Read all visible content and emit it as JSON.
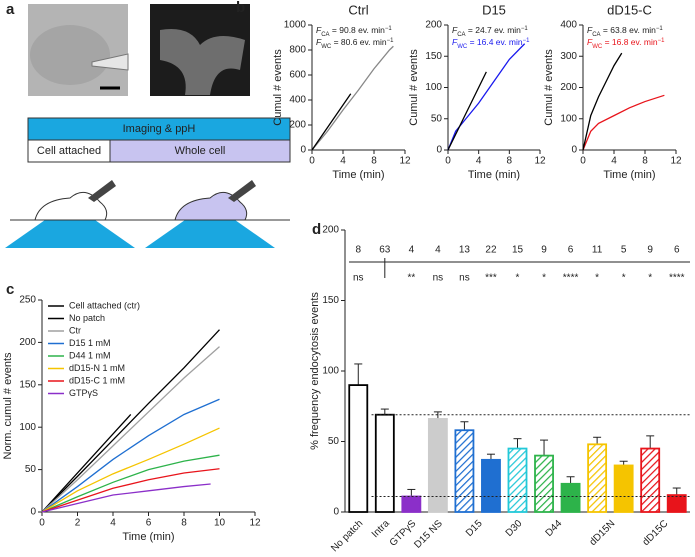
{
  "panel_labels": [
    "a",
    "b",
    "c",
    "d"
  ],
  "diagram": {
    "top_bar": "Imaging & ppH",
    "left": "Cell attached",
    "right": "Whole cell"
  },
  "chart_data": [
    {
      "type": "line",
      "title": "Ctrl",
      "title_color": "#888888",
      "xlabel": "Time (min)",
      "ylabel": "Cumul # events",
      "xlim": [
        0,
        12
      ],
      "xticks": [
        0,
        4,
        8,
        12
      ],
      "ylim": [
        0,
        1000
      ],
      "yticks": [
        0,
        200,
        400,
        600,
        800,
        1000
      ],
      "annotations": [
        {
          "symbol": "F",
          "subscript": "CA",
          "text": " = 90.8 ev. min",
          "superscript": "−1",
          "color": "#222222"
        },
        {
          "symbol": "F",
          "subscript": "WC",
          "text": " = 80.6 ev. min",
          "superscript": "−1",
          "color": "#222222"
        }
      ],
      "series": [
        {
          "color": "#888888",
          "x": [
            0,
            2,
            4,
            6,
            8,
            10,
            10.5
          ],
          "values": [
            0,
            150,
            320,
            480,
            650,
            800,
            830
          ]
        },
        {
          "color": "#000000",
          "x": [
            0,
            1,
            2,
            3,
            4,
            5
          ],
          "values": [
            0,
            90,
            180,
            270,
            360,
            450
          ]
        }
      ]
    },
    {
      "type": "line",
      "title": "D15",
      "title_color": "#1a1aee",
      "xlabel": "Time (min)",
      "ylabel": "Cumul # events",
      "xlim": [
        0,
        12
      ],
      "xticks": [
        0,
        4,
        8,
        12
      ],
      "ylim": [
        0,
        200
      ],
      "yticks": [
        0,
        50,
        100,
        150,
        200
      ],
      "annotations": [
        {
          "symbol": "F",
          "subscript": "CA",
          "text": " = 24.7 ev. min",
          "superscript": "−1",
          "color": "#222222"
        },
        {
          "symbol": "F",
          "subscript": "WC",
          "text": " = 16.4 ev. min",
          "superscript": "−1",
          "color": "#1a1aee"
        }
      ],
      "series": [
        {
          "color": "#1a1aee",
          "x": [
            0,
            1,
            2,
            4,
            6,
            8,
            10
          ],
          "values": [
            0,
            30,
            45,
            75,
            110,
            145,
            170
          ]
        },
        {
          "color": "#000000",
          "x": [
            0,
            1,
            2,
            3,
            4,
            5
          ],
          "values": [
            0,
            25,
            50,
            75,
            100,
            125
          ]
        }
      ]
    },
    {
      "type": "line",
      "title": "dD15-C",
      "title_color": "#e8141b",
      "xlabel": "Time (min)",
      "ylabel": "Cumul # events",
      "xlim": [
        0,
        12
      ],
      "xticks": [
        0,
        4,
        8,
        12
      ],
      "ylim": [
        0,
        400
      ],
      "yticks": [
        0,
        100,
        200,
        300,
        400
      ],
      "annotations": [
        {
          "symbol": "F",
          "subscript": "CA",
          "text": " = 63.8 ev. min",
          "superscript": "−1",
          "color": "#222222"
        },
        {
          "symbol": "F",
          "subscript": "WC",
          "text": " = 16.8 ev. min",
          "superscript": "−1",
          "color": "#e8141b"
        }
      ],
      "series": [
        {
          "color": "#e8141b",
          "x": [
            0,
            1,
            2,
            4,
            6,
            8,
            10.5
          ],
          "values": [
            0,
            60,
            85,
            110,
            135,
            155,
            175
          ]
        },
        {
          "color": "#000000",
          "x": [
            0,
            1,
            2,
            3,
            4,
            5
          ],
          "values": [
            0,
            110,
            170,
            220,
            270,
            310
          ]
        }
      ]
    },
    {
      "type": "line",
      "xlabel": "Time (min)",
      "ylabel": "Norm. cumul # events",
      "xlim": [
        0,
        12
      ],
      "xticks": [
        0,
        2,
        4,
        6,
        8,
        10,
        12
      ],
      "ylim": [
        0,
        250
      ],
      "yticks": [
        0,
        50,
        100,
        150,
        200,
        250
      ],
      "legend": "upper left",
      "series": [
        {
          "name": "Cell attached (ctr)",
          "color": "#000000",
          "x": [
            0,
            1,
            2,
            3,
            4,
            5
          ],
          "values": [
            0,
            23,
            46,
            69,
            92,
            115
          ]
        },
        {
          "name": "No patch",
          "color": "#000000",
          "x": [
            0,
            2,
            4,
            6,
            8,
            10
          ],
          "values": [
            0,
            42,
            85,
            128,
            170,
            215
          ]
        },
        {
          "name": "Ctr",
          "color": "#a0a0a0",
          "x": [
            0,
            2,
            4,
            6,
            8,
            10
          ],
          "values": [
            0,
            38,
            78,
            118,
            158,
            195
          ]
        },
        {
          "name": "D15 1 mM",
          "color": "#1f6fd1",
          "x": [
            0,
            2,
            4,
            6,
            8,
            10
          ],
          "values": [
            0,
            30,
            62,
            90,
            115,
            133
          ]
        },
        {
          "name": "D44 1 mM",
          "color": "#2db34a",
          "x": [
            0,
            2,
            4,
            6,
            8,
            10
          ],
          "values": [
            0,
            18,
            35,
            50,
            60,
            67
          ]
        },
        {
          "name": "dD15-N 1 mM",
          "color": "#f5c400",
          "x": [
            0,
            2,
            4,
            6,
            8,
            10
          ],
          "values": [
            0,
            25,
            45,
            62,
            80,
            99
          ]
        },
        {
          "name": "dD15-C 1 mM",
          "color": "#e8141b",
          "x": [
            0,
            2,
            4,
            6,
            8,
            10
          ],
          "values": [
            0,
            14,
            28,
            38,
            46,
            51
          ]
        },
        {
          "name": "GTPγS",
          "color": "#8b2fc9",
          "x": [
            0,
            2,
            4,
            6,
            8,
            9.5
          ],
          "values": [
            0,
            10,
            20,
            25,
            30,
            33
          ]
        }
      ]
    },
    {
      "type": "bar",
      "ylabel": "% frequency endocytosis events",
      "ylim": [
        0,
        200
      ],
      "yticks": [
        0,
        50,
        100,
        150,
        200
      ],
      "categories": [
        "No patch",
        "Intra",
        "GTPγS",
        "D15 NS",
        "D15",
        null,
        "D30",
        "D44",
        null,
        "dD15N",
        null,
        "dD15C",
        null
      ],
      "values": [
        90,
        69,
        11,
        66,
        58,
        37,
        45,
        40,
        20,
        48,
        33,
        45,
        12
      ],
      "errors": [
        15,
        4,
        5,
        5,
        6,
        4,
        7,
        11,
        5,
        5,
        3,
        9,
        5
      ],
      "colors": [
        "#ffffff",
        "#ffffff",
        "#8b2fc9",
        "#cccccc",
        "#1f6fd1",
        "#1f6fd1",
        "#22c8d8",
        "#2db34a",
        "#2db34a",
        "#f5c400",
        "#f5c400",
        "#e8141b",
        "#e8141b"
      ],
      "hatched": [
        false,
        false,
        false,
        false,
        true,
        false,
        true,
        true,
        false,
        true,
        false,
        true,
        false
      ],
      "n": [
        8,
        63,
        4,
        4,
        13,
        22,
        15,
        9,
        6,
        11,
        5,
        9,
        6
      ],
      "significance": [
        "ns",
        null,
        "**",
        "ns",
        "ns",
        "***",
        "*",
        "*",
        "****",
        "*",
        "*",
        "*",
        "****"
      ],
      "reference_lines": [
        69,
        11
      ]
    }
  ]
}
